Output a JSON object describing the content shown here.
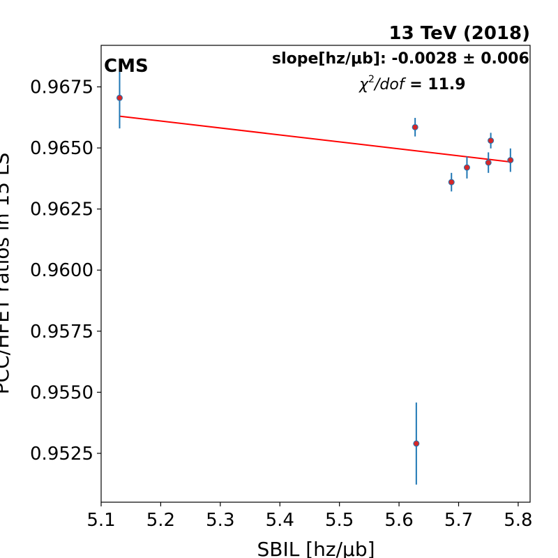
{
  "chart_data": {
    "type": "scatter",
    "energy_label": "13 TeV (2018)",
    "experiment_label": "CMS",
    "slope_label": "slope[hz/μb]: -0.0028 ± 0.006",
    "chi2_prefix": "χ",
    "chi2_exponent": "2",
    "chi2_dof": "/dof",
    "chi2_value": " = 11.9",
    "xlabel": "SBIL [hz/μb]",
    "ylabel": "PCC/HFET ratios in 15 LS",
    "xlim": [
      5.1,
      5.82
    ],
    "ylim": [
      0.9505,
      0.9692
    ],
    "xticks": [
      5.1,
      5.2,
      5.3,
      5.4,
      5.5,
      5.6,
      5.7,
      5.8
    ],
    "xtick_labels": [
      "5.1",
      "5.2",
      "5.3",
      "5.4",
      "5.5",
      "5.6",
      "5.7",
      "5.8"
    ],
    "yticks": [
      0.9525,
      0.955,
      0.9575,
      0.96,
      0.9625,
      0.965,
      0.9675
    ],
    "ytick_labels": [
      "0.9525",
      "0.9550",
      "0.9575",
      "0.9600",
      "0.9625",
      "0.9650",
      "0.9675"
    ],
    "points": [
      {
        "x": 5.131,
        "y": 0.96705,
        "err": 0.00125
      },
      {
        "x": 5.627,
        "y": 0.96585,
        "err": 0.00038
      },
      {
        "x": 5.629,
        "y": 0.9529,
        "err": 0.00168
      },
      {
        "x": 5.688,
        "y": 0.9636,
        "err": 0.00038
      },
      {
        "x": 5.714,
        "y": 0.9642,
        "err": 0.00045
      },
      {
        "x": 5.75,
        "y": 0.9644,
        "err": 0.00042
      },
      {
        "x": 5.754,
        "y": 0.9653,
        "err": 0.00032
      },
      {
        "x": 5.787,
        "y": 0.9645,
        "err": 0.00048
      }
    ],
    "fit_line": {
      "x": [
        5.131,
        5.787
      ],
      "y": [
        0.9663,
        0.96443
      ]
    },
    "colors": {
      "marker_fill": "#d62728",
      "marker_edge": "#1f77b4",
      "errorbar": "#1f77b4",
      "fit": "#ff0000"
    },
    "grid": false
  }
}
